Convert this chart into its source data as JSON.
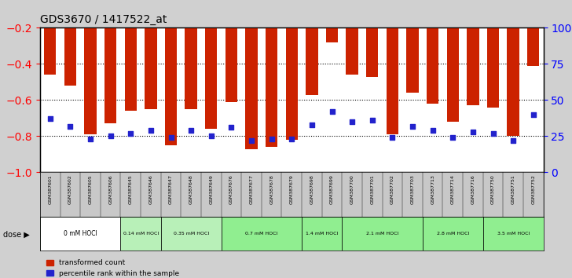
{
  "title": "GDS3670 / 1417522_at",
  "samples": [
    "GSM387601",
    "GSM387602",
    "GSM387605",
    "GSM387606",
    "GSM387645",
    "GSM387646",
    "GSM387647",
    "GSM387648",
    "GSM387649",
    "GSM387676",
    "GSM387677",
    "GSM387678",
    "GSM387679",
    "GSM387698",
    "GSM387699",
    "GSM387700",
    "GSM387701",
    "GSM387702",
    "GSM387703",
    "GSM387713",
    "GSM387714",
    "GSM387716",
    "GSM387750",
    "GSM387751",
    "GSM387752"
  ],
  "red_values": [
    -0.46,
    -0.52,
    -0.79,
    -0.73,
    -0.66,
    -0.65,
    -0.85,
    -0.65,
    -0.76,
    -0.61,
    -0.87,
    -0.86,
    -0.82,
    -0.57,
    -0.28,
    -0.46,
    -0.47,
    -0.79,
    -0.56,
    -0.62,
    -0.72,
    -0.63,
    -0.64,
    -0.8,
    -0.41
  ],
  "blue_values": [
    0.37,
    0.32,
    0.23,
    0.25,
    0.27,
    0.29,
    0.24,
    0.29,
    0.25,
    0.31,
    0.22,
    0.23,
    0.23,
    0.33,
    0.42,
    0.35,
    0.36,
    0.24,
    0.32,
    0.29,
    0.24,
    0.28,
    0.27,
    0.22,
    0.4
  ],
  "dose_groups": [
    {
      "label": "0 mM HOCl",
      "start": 0,
      "end": 4,
      "color": "#ffffff"
    },
    {
      "label": "0.14 mM HOCl",
      "start": 4,
      "end": 6,
      "color": "#90ee90"
    },
    {
      "label": "0.35 mM HOCl",
      "start": 6,
      "end": 9,
      "color": "#90ee90"
    },
    {
      "label": "0.7 mM HOCl",
      "start": 9,
      "end": 13,
      "color": "#90ee90"
    },
    {
      "label": "1.4 mM HOCl",
      "start": 13,
      "end": 15,
      "color": "#90ee90"
    },
    {
      "label": "2.1 mM HOCl",
      "start": 15,
      "end": 19,
      "color": "#90ee90"
    },
    {
      "label": "2.8 mM HOCl",
      "start": 19,
      "end": 22,
      "color": "#90ee90"
    },
    {
      "label": "3.5 mM HOCl",
      "start": 22,
      "end": 25,
      "color": "#90ee90"
    }
  ],
  "ylim_left": [
    -1.0,
    -0.2
  ],
  "ylim_right": [
    0,
    100
  ],
  "yticks_left": [
    -1.0,
    -0.8,
    -0.6,
    -0.4,
    -0.2
  ],
  "yticks_right": [
    0,
    25,
    50,
    75,
    100
  ],
  "bar_color": "#cc2200",
  "blue_color": "#2222cc",
  "background_color": "#f0f0f0"
}
